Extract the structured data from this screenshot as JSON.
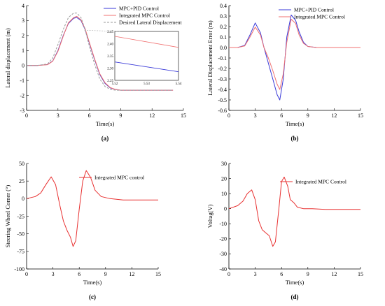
{
  "chart_data": [
    {
      "type": "line",
      "panel": "a",
      "caption": "(a)",
      "xlabel": "Time(s)",
      "ylabel": "Lateral displacement (m)",
      "xlim": [
        0,
        15
      ],
      "ylim": [
        -3,
        4
      ],
      "xticks": [
        0,
        3,
        6,
        9,
        12,
        15
      ],
      "yticks": [
        -3,
        -2,
        -1,
        0,
        1,
        2,
        3,
        4
      ],
      "legend_position": "top-right",
      "series": [
        {
          "name": "MPC+PID Control",
          "color": "#3a3ad8",
          "dash": "solid",
          "x": [
            0,
            1,
            2,
            2.5,
            3,
            3.5,
            4,
            4.5,
            4.8,
            5.2,
            5.6,
            6,
            6.5,
            7,
            7.5,
            8,
            8.5,
            9,
            10,
            11,
            12,
            13,
            14
          ],
          "y": [
            0,
            0,
            0.06,
            0.3,
            1.0,
            2.0,
            2.8,
            3.15,
            3.2,
            3.0,
            2.4,
            1.5,
            0.4,
            -0.6,
            -1.2,
            -1.5,
            -1.6,
            -1.65,
            -1.65,
            -1.65,
            -1.65,
            -1.65,
            -1.65
          ]
        },
        {
          "name": "Integrated MPC Control",
          "color": "#f07070",
          "dash": "solid",
          "x": [
            0,
            1,
            2,
            2.5,
            3,
            3.5,
            4,
            4.5,
            4.8,
            5.2,
            5.6,
            6,
            6.5,
            7,
            7.5,
            8,
            8.5,
            9,
            10,
            11,
            12,
            13,
            14
          ],
          "y": [
            0,
            0,
            0.05,
            0.28,
            0.95,
            1.95,
            2.85,
            3.2,
            3.28,
            3.05,
            2.45,
            1.55,
            0.45,
            -0.55,
            -1.15,
            -1.48,
            -1.6,
            -1.65,
            -1.65,
            -1.65,
            -1.65,
            -1.65,
            -1.65
          ]
        },
        {
          "name": "Desired Lateral Displacement",
          "color": "#9a9a9a",
          "dash": "dashed",
          "x": [
            0,
            1,
            2,
            2.5,
            3,
            3.5,
            4,
            4.5,
            4.8,
            5.2,
            5.6,
            6,
            6.5,
            7,
            7.5,
            8,
            8.5,
            9,
            10,
            11,
            12,
            13,
            14
          ],
          "y": [
            0,
            0,
            0.1,
            0.5,
            1.4,
            2.4,
            3.2,
            3.5,
            3.5,
            3.2,
            2.4,
            1.3,
            0.1,
            -0.9,
            -1.4,
            -1.6,
            -1.65,
            -1.65,
            -1.65,
            -1.65,
            -1.65,
            -1.65,
            -1.65
          ]
        }
      ],
      "inset": {
        "xlim": [
          5.52,
          5.54
        ],
        "ylim": [
          2.25,
          2.45
        ],
        "xticks": [
          5.52,
          5.53,
          5.54
        ],
        "yticks": [
          2.25,
          2.3,
          2.35,
          2.4,
          2.45
        ],
        "series": [
          {
            "name": "MPC+PID Control",
            "x": [
              5.52,
              5.54
            ],
            "y": [
              2.325,
              2.285
            ]
          },
          {
            "name": "Integrated MPC Control",
            "x": [
              5.52,
              5.54
            ],
            "y": [
              2.43,
              2.385
            ]
          }
        ]
      }
    },
    {
      "type": "line",
      "panel": "b",
      "caption": "(b)",
      "xlabel": "Time(s)",
      "ylabel": "Lateral Displacement Error (m)",
      "xlim": [
        0,
        15
      ],
      "ylim": [
        -0.6,
        0.4
      ],
      "xticks": [
        0,
        3,
        6,
        9,
        12,
        15
      ],
      "yticks": [
        -0.6,
        -0.5,
        -0.4,
        -0.3,
        -0.2,
        -0.1,
        0.0,
        0.1,
        0.2,
        0.3,
        0.4
      ],
      "legend_position": "top-right",
      "series": [
        {
          "name": "MPC+PID Control",
          "color": "#3a3ad8",
          "x": [
            0,
            1,
            1.8,
            2.4,
            3,
            3.6,
            4,
            4.5,
            5,
            5.5,
            5.8,
            6.2,
            6.6,
            7.1,
            7.6,
            8,
            8.5,
            9,
            10,
            11,
            12,
            13,
            14,
            15
          ],
          "y": [
            0,
            0,
            0.02,
            0.12,
            0.235,
            0.14,
            0.0,
            -0.15,
            -0.3,
            -0.45,
            -0.5,
            -0.3,
            0.1,
            0.31,
            0.26,
            0.15,
            0.05,
            0.01,
            0,
            0,
            0,
            0,
            0,
            0
          ]
        },
        {
          "name": "Integrated MPC Control",
          "color": "#f07070",
          "x": [
            0,
            1,
            1.8,
            2.4,
            3,
            3.6,
            4,
            4.5,
            5,
            5.5,
            5.8,
            6.2,
            6.6,
            7.1,
            7.6,
            8,
            8.5,
            9,
            10,
            11,
            12,
            13,
            14,
            15
          ],
          "y": [
            0,
            0,
            0.015,
            0.1,
            0.195,
            0.12,
            0.0,
            -0.1,
            -0.22,
            -0.35,
            -0.4,
            -0.25,
            0.05,
            0.27,
            0.23,
            0.12,
            0.04,
            0.01,
            0,
            0,
            0,
            0,
            0,
            0
          ]
        }
      ]
    },
    {
      "type": "line",
      "panel": "c",
      "caption": "(c)",
      "xlabel": "Time(s)",
      "ylabel": "Steering Wheel Corner (°)",
      "xlim": [
        0,
        15
      ],
      "ylim": [
        -100,
        50
      ],
      "xticks": [
        0,
        3,
        6,
        9,
        12,
        15
      ],
      "yticks": [
        -100,
        -75,
        -50,
        -25,
        0,
        25,
        50
      ],
      "legend_position": "top-right",
      "series": [
        {
          "name": "Integrated MPC control",
          "color": "#e83030",
          "x": [
            0,
            1,
            1.6,
            2.2,
            2.8,
            3.3,
            3.8,
            4.2,
            4.6,
            5.0,
            5.3,
            5.6,
            6.0,
            6.4,
            6.8,
            7.3,
            7.8,
            8.5,
            9.5,
            11,
            13,
            15
          ],
          "y": [
            0,
            3,
            8,
            20,
            31,
            20,
            -10,
            -32,
            -45,
            -55,
            -68,
            -60,
            -15,
            25,
            40,
            30,
            12,
            3,
            0,
            -2,
            -2,
            -2
          ]
        }
      ]
    },
    {
      "type": "line",
      "panel": "d",
      "caption": "(d)",
      "xlabel": "Time(s)",
      "ylabel": "Voltag(V)",
      "xlim": [
        0,
        15
      ],
      "ylim": [
        -40,
        30
      ],
      "xticks": [
        0,
        3,
        6,
        9,
        12,
        15
      ],
      "yticks": [
        -40,
        -30,
        -20,
        -10,
        0,
        10,
        20,
        30
      ],
      "legend_position": "top-right",
      "series": [
        {
          "name": "Integrated MPC Control",
          "color": "#e83030",
          "x": [
            0,
            1,
            1.6,
            2.1,
            2.6,
            3.0,
            3.4,
            3.8,
            4.2,
            4.6,
            5.0,
            5.3,
            5.7,
            6.0,
            6.3,
            6.7,
            7.0,
            7.4,
            7.8,
            8.5,
            9.5,
            11,
            13,
            15
          ],
          "y": [
            0,
            2,
            5,
            10,
            12.5,
            6,
            -8,
            -14,
            -16,
            -18,
            -25,
            -22,
            0,
            18,
            21,
            15,
            6,
            4,
            1,
            0,
            0,
            -0.5,
            -0.5,
            -0.5
          ]
        }
      ]
    }
  ]
}
